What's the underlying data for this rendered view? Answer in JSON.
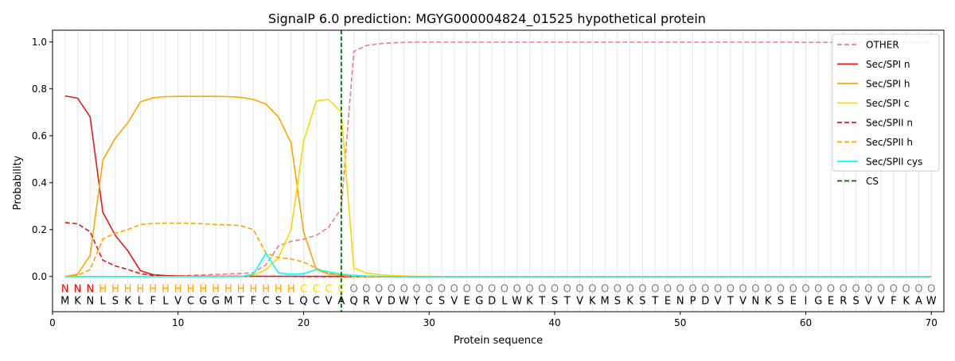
{
  "chart_data": {
    "type": "line",
    "title": "SignalP 6.0 prediction: MGYG000004824_01525 hypothetical protein",
    "xlabel": "Protein sequence",
    "ylabel": "Probability",
    "xlim": [
      0,
      71
    ],
    "ylim": [
      -0.15,
      1.05
    ],
    "xticks": [
      0,
      10,
      20,
      30,
      40,
      50,
      60,
      70
    ],
    "yticks": [
      0.0,
      0.2,
      0.4,
      0.6,
      0.8,
      1.0
    ],
    "legend_position": "top-right",
    "sequence": [
      "M",
      "K",
      "N",
      "L",
      "S",
      "K",
      "L",
      "F",
      "L",
      "V",
      "C",
      "G",
      "G",
      "M",
      "T",
      "F",
      "C",
      "S",
      "L",
      "Q",
      "C",
      "V",
      "A",
      "Q",
      "R",
      "V",
      "D",
      "W",
      "Y",
      "C",
      "S",
      "V",
      "E",
      "G",
      "D",
      "L",
      "W",
      "K",
      "T",
      "S",
      "T",
      "V",
      "K",
      "M",
      "S",
      "K",
      "S",
      "T",
      "E",
      "N",
      "P",
      "D",
      "V",
      "T",
      "V",
      "N",
      "K",
      "S",
      "E",
      "I",
      "G",
      "E",
      "R",
      "S",
      "V",
      "V",
      "F",
      "K",
      "A",
      "W"
    ],
    "region_labels": [
      "N",
      "N",
      "N",
      "H",
      "H",
      "H",
      "H",
      "H",
      "H",
      "H",
      "H",
      "H",
      "H",
      "H",
      "H",
      "H",
      "H",
      "H",
      "H",
      "C",
      "C",
      "C",
      "C",
      "O",
      "O",
      "O",
      "O",
      "O",
      "O",
      "O",
      "O",
      "O",
      "O",
      "O",
      "O",
      "O",
      "O",
      "O",
      "O",
      "O",
      "O",
      "O",
      "O",
      "O",
      "O",
      "O",
      "O",
      "O",
      "O",
      "O",
      "O",
      "O",
      "O",
      "O",
      "O",
      "O",
      "O",
      "O",
      "O",
      "O",
      "O",
      "O",
      "O",
      "O",
      "O",
      "O",
      "O",
      "O",
      "O",
      "O"
    ],
    "region_colors": {
      "N": "#ff0000",
      "H": "#ffa500",
      "C": "#ffd700",
      "O": "#808080"
    },
    "cleavage_site": 23,
    "series": [
      {
        "name": "OTHER",
        "color": "#f08080",
        "dash": "dashed",
        "values": [
          0.0,
          0.0,
          0.0,
          0.0,
          0.0,
          0.0,
          0.0,
          0.0,
          0.0,
          0.003,
          0.005,
          0.007,
          0.009,
          0.011,
          0.013,
          0.016,
          0.05,
          0.13,
          0.15,
          0.16,
          0.175,
          0.21,
          0.29,
          0.96,
          0.985,
          0.992,
          0.996,
          0.998,
          0.999,
          0.999,
          0.999,
          0.999,
          0.999,
          0.999,
          0.999,
          0.999,
          0.999,
          0.999,
          0.999,
          0.999,
          0.999,
          0.999,
          0.999,
          0.999,
          0.999,
          0.999,
          0.999,
          0.999,
          0.999,
          0.999,
          0.999,
          0.999,
          0.999,
          0.999,
          0.999,
          0.999,
          0.999,
          0.999,
          0.999,
          0.998,
          0.998,
          0.998,
          0.998,
          0.998,
          0.998,
          0.998,
          0.998,
          0.998,
          0.998,
          0.998
        ]
      },
      {
        "name": "Sec/SPI n",
        "color": "#e41a1c",
        "dash": "solid",
        "values": [
          0.77,
          0.76,
          0.68,
          0.275,
          0.175,
          0.11,
          0.025,
          0.008,
          0.004,
          0.002,
          0.001,
          0.001,
          0.001,
          0.001,
          0.001,
          0.001,
          0.001,
          0.001,
          0.001,
          0.001,
          0.001,
          0.001,
          0.0,
          0.0,
          0.0,
          0.0,
          0.0,
          0.0,
          0.0,
          0.0,
          0.0,
          0.0,
          0.0,
          0.0,
          0.0,
          0.0,
          0.0,
          0.0,
          0.0,
          0.0,
          0.0,
          0.0,
          0.0,
          0.0,
          0.0,
          0.0,
          0.0,
          0.0,
          0.0,
          0.0,
          0.0,
          0.0,
          0.0,
          0.0,
          0.0,
          0.0,
          0.0,
          0.0,
          0.0,
          0.0,
          0.0,
          0.0,
          0.0,
          0.0,
          0.0,
          0.0,
          0.0,
          0.0,
          0.0,
          0.0
        ]
      },
      {
        "name": "Sec/SPI h",
        "color": "#ffa500",
        "dash": "solid",
        "values": [
          0.0,
          0.01,
          0.09,
          0.495,
          0.59,
          0.655,
          0.745,
          0.762,
          0.767,
          0.768,
          0.768,
          0.768,
          0.768,
          0.767,
          0.764,
          0.755,
          0.735,
          0.68,
          0.57,
          0.19,
          0.03,
          0.01,
          0.005,
          0.0,
          0.0,
          0.0,
          0.0,
          0.0,
          0.0,
          0.0,
          0.0,
          0.0,
          0.0,
          0.0,
          0.0,
          0.0,
          0.0,
          0.0,
          0.0,
          0.0,
          0.0,
          0.0,
          0.0,
          0.0,
          0.0,
          0.0,
          0.0,
          0.0,
          0.0,
          0.0,
          0.0,
          0.0,
          0.0,
          0.0,
          0.0,
          0.0,
          0.0,
          0.0,
          0.0,
          0.0,
          0.0,
          0.0,
          0.0,
          0.0,
          0.0,
          0.0,
          0.0,
          0.0,
          0.0,
          0.0
        ]
      },
      {
        "name": "Sec/SPI c",
        "color": "#ffd700",
        "dash": "solid",
        "values": [
          0.0,
          0.0,
          0.0,
          0.0,
          0.0,
          0.0,
          0.0,
          0.0,
          0.0,
          0.0,
          0.0,
          0.0,
          0.0,
          0.0,
          0.0,
          0.005,
          0.03,
          0.08,
          0.2,
          0.575,
          0.748,
          0.755,
          0.7,
          0.035,
          0.015,
          0.008,
          0.004,
          0.002,
          0.001,
          0.001,
          0.0,
          0.0,
          0.0,
          0.0,
          0.0,
          0.0,
          0.0,
          0.0,
          0.0,
          0.0,
          0.0,
          0.0,
          0.0,
          0.0,
          0.0,
          0.0,
          0.0,
          0.0,
          0.0,
          0.0,
          0.0,
          0.0,
          0.0,
          0.0,
          0.0,
          0.0,
          0.0,
          0.0,
          0.0,
          0.0,
          0.0,
          0.0,
          0.0,
          0.0,
          0.0,
          0.0,
          0.0,
          0.0,
          0.0,
          0.0
        ]
      },
      {
        "name": "Sec/SPII n",
        "color": "#e41a1c",
        "dash": "dashed",
        "values": [
          0.23,
          0.225,
          0.19,
          0.07,
          0.045,
          0.03,
          0.012,
          0.005,
          0.003,
          0.002,
          0.001,
          0.001,
          0.001,
          0.001,
          0.001,
          0.001,
          0.001,
          0.001,
          0.001,
          0.0,
          0.0,
          0.0,
          0.0,
          0.0,
          0.0,
          0.0,
          0.0,
          0.0,
          0.0,
          0.0,
          0.0,
          0.0,
          0.0,
          0.0,
          0.0,
          0.0,
          0.0,
          0.0,
          0.0,
          0.0,
          0.0,
          0.0,
          0.0,
          0.0,
          0.0,
          0.0,
          0.0,
          0.0,
          0.0,
          0.0,
          0.0,
          0.0,
          0.0,
          0.0,
          0.0,
          0.0,
          0.0,
          0.0,
          0.0,
          0.0,
          0.0,
          0.0,
          0.0,
          0.0,
          0.0,
          0.0,
          0.0,
          0.0,
          0.0,
          0.0
        ]
      },
      {
        "name": "Sec/SPII h",
        "color": "#ffa500",
        "dash": "dashed",
        "values": [
          0.0,
          0.005,
          0.03,
          0.16,
          0.185,
          0.2,
          0.222,
          0.226,
          0.228,
          0.228,
          0.227,
          0.225,
          0.222,
          0.22,
          0.217,
          0.2,
          0.1,
          0.08,
          0.075,
          0.062,
          0.035,
          0.015,
          0.005,
          0.0,
          0.0,
          0.0,
          0.0,
          0.0,
          0.0,
          0.0,
          0.0,
          0.0,
          0.0,
          0.0,
          0.0,
          0.0,
          0.0,
          0.0,
          0.0,
          0.0,
          0.0,
          0.0,
          0.0,
          0.0,
          0.0,
          0.0,
          0.0,
          0.0,
          0.0,
          0.0,
          0.0,
          0.0,
          0.0,
          0.0,
          0.0,
          0.0,
          0.0,
          0.0,
          0.0,
          0.0,
          0.0,
          0.0,
          0.0,
          0.0,
          0.0,
          0.0,
          0.0,
          0.0,
          0.0,
          0.0
        ]
      },
      {
        "name": "Sec/SPII cys",
        "color": "#00ffff",
        "dash": "solid",
        "values": [
          0.0,
          0.0,
          0.0,
          0.0,
          0.0,
          0.0,
          0.0,
          0.0,
          0.0,
          0.0,
          0.0,
          0.0,
          0.0,
          0.0,
          0.0,
          0.01,
          0.1,
          0.015,
          0.01,
          0.012,
          0.03,
          0.02,
          0.01,
          0.005,
          0.002,
          0.001,
          0.0,
          0.0,
          0.0,
          0.0,
          0.0,
          0.0,
          0.0,
          0.0,
          0.0,
          0.0,
          0.0,
          0.0,
          0.0,
          0.0,
          0.0,
          0.0,
          0.0,
          0.0,
          0.0,
          0.0,
          0.0,
          0.0,
          0.0,
          0.0,
          0.0,
          0.0,
          0.0,
          0.0,
          0.0,
          0.0,
          0.0,
          0.0,
          0.0,
          0.0,
          0.0,
          0.0,
          0.0,
          0.0,
          0.0,
          0.0,
          0.0,
          0.0,
          0.0,
          0.0
        ]
      }
    ],
    "legend": [
      {
        "label": "OTHER",
        "color": "#f08080",
        "dash": "dashed"
      },
      {
        "label": "Sec/SPI n",
        "color": "#e41a1c",
        "dash": "solid"
      },
      {
        "label": "Sec/SPI h",
        "color": "#ffa500",
        "dash": "solid"
      },
      {
        "label": "Sec/SPI c",
        "color": "#ffd700",
        "dash": "solid"
      },
      {
        "label": "Sec/SPII n",
        "color": "#e41a1c",
        "dash": "dashed"
      },
      {
        "label": "Sec/SPII h",
        "color": "#ffa500",
        "dash": "dashed"
      },
      {
        "label": "Sec/SPII cys",
        "color": "#00ffff",
        "dash": "solid"
      },
      {
        "label": "CS",
        "color": "#006400",
        "dash": "dashed"
      }
    ]
  }
}
